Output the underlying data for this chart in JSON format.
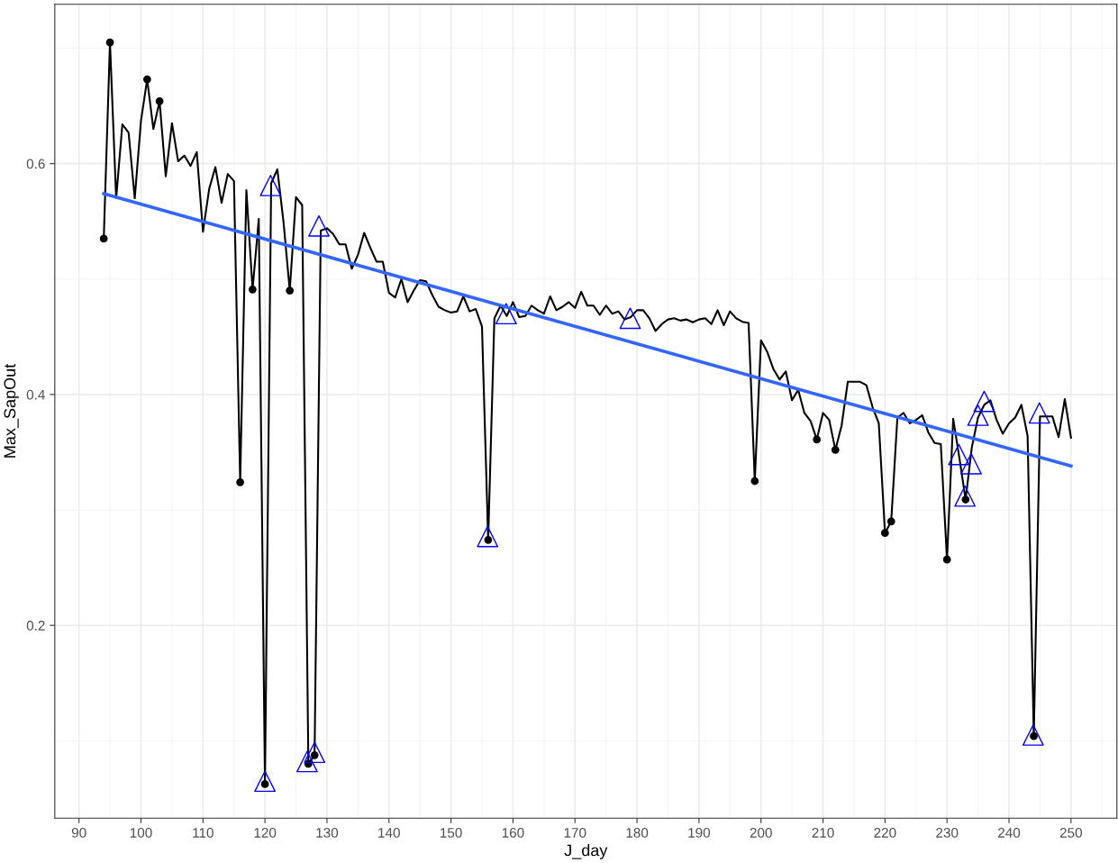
{
  "chart_data": {
    "type": "line",
    "xlabel": "J_day",
    "ylabel": "Max_SapOut",
    "xlim": [
      86.1,
      257.4
    ],
    "ylim": [
      0.033,
      0.738
    ],
    "xticks": [
      90,
      100,
      110,
      120,
      130,
      140,
      150,
      160,
      170,
      180,
      190,
      200,
      210,
      220,
      230,
      240,
      250
    ],
    "yticks": [
      0.2,
      0.4,
      0.6
    ],
    "grid": true,
    "series": [
      {
        "color": "#000000",
        "marker": "none",
        "x": [
          94,
          95,
          96,
          97,
          98,
          99,
          100,
          101,
          102,
          103,
          104,
          105,
          106,
          107,
          108,
          109,
          110,
          111,
          112,
          113,
          114,
          115,
          116,
          117,
          118,
          119,
          120,
          121,
          122,
          123,
          124,
          125,
          126,
          127,
          128,
          129,
          130,
          131,
          132,
          133,
          134,
          135,
          136,
          137,
          138,
          139,
          140,
          141,
          142,
          143,
          144,
          145,
          146,
          147,
          148,
          149,
          150,
          151,
          152,
          153,
          154,
          155,
          156,
          157,
          158,
          159,
          160,
          161,
          162,
          163,
          164,
          165,
          166,
          167,
          168,
          169,
          170,
          171,
          172,
          173,
          174,
          175,
          176,
          177,
          178,
          179,
          180,
          181,
          182,
          183,
          184,
          185,
          186,
          187,
          188,
          189,
          190,
          191,
          192,
          193,
          194,
          195,
          196,
          197,
          198,
          199,
          200,
          201,
          202,
          203,
          204,
          205,
          206,
          207,
          208,
          209,
          210,
          211,
          212,
          213,
          214,
          215,
          216,
          217,
          218,
          219,
          220,
          221,
          222,
          223,
          224,
          225,
          226,
          227,
          228,
          229,
          230,
          231,
          232,
          233,
          234,
          235,
          236,
          237,
          238,
          239,
          240,
          241,
          242,
          243,
          244,
          245,
          246,
          247,
          248,
          249,
          250
        ],
        "values": [
          0.535,
          0.705,
          0.57,
          0.634,
          0.627,
          0.57,
          0.637,
          0.673,
          0.63,
          0.654,
          0.589,
          0.635,
          0.602,
          0.607,
          0.598,
          0.61,
          0.541,
          0.578,
          0.597,
          0.566,
          0.591,
          0.585,
          0.324,
          0.577,
          0.491,
          0.552,
          0.0625,
          0.583,
          0.595,
          0.549,
          0.49,
          0.571,
          0.564,
          0.08,
          0.0875,
          0.542,
          0.544,
          0.539,
          0.53,
          0.53,
          0.509,
          0.521,
          0.54,
          0.527,
          0.515,
          0.515,
          0.488,
          0.484,
          0.5,
          0.48,
          0.49,
          0.499,
          0.498,
          0.486,
          0.476,
          0.473,
          0.471,
          0.472,
          0.485,
          0.472,
          0.474,
          0.459,
          0.274,
          0.466,
          0.477,
          0.468,
          0.48,
          0.467,
          0.468,
          0.477,
          0.473,
          0.47,
          0.485,
          0.473,
          0.476,
          0.48,
          0.475,
          0.489,
          0.477,
          0.477,
          0.469,
          0.477,
          0.47,
          0.472,
          0.465,
          0.467,
          0.473,
          0.473,
          0.466,
          0.455,
          0.461,
          0.465,
          0.466,
          0.464,
          0.465,
          0.4625,
          0.465,
          0.466,
          0.461,
          0.473,
          0.46,
          0.472,
          0.466,
          0.463,
          0.462,
          0.325,
          0.447,
          0.437,
          0.422,
          0.413,
          0.42,
          0.395,
          0.404,
          0.384,
          0.377,
          0.361,
          0.384,
          0.378,
          0.352,
          0.373,
          0.411,
          0.411,
          0.411,
          0.408,
          0.389,
          0.375,
          0.28,
          0.29,
          0.38,
          0.384,
          0.375,
          0.378,
          0.382,
          0.367,
          0.358,
          0.357,
          0.257,
          0.379,
          0.345,
          0.309,
          0.354,
          0.38,
          0.391,
          0.395,
          0.378,
          0.366,
          0.375,
          0.38,
          0.391,
          0.364,
          0.104,
          0.381,
          0.381,
          0.381,
          0.363,
          0.396,
          0.3625
        ]
      },
      {
        "type": "scatter",
        "color": "#000000",
        "marker": "circle",
        "x": [
          94,
          95,
          101,
          103,
          116,
          118,
          120,
          124,
          127,
          128,
          156,
          199,
          209,
          212,
          220,
          221,
          230,
          233,
          244
        ],
        "values": [
          0.535,
          0.705,
          0.673,
          0.654,
          0.324,
          0.491,
          0.0625,
          0.49,
          0.08,
          0.0875,
          0.274,
          0.325,
          0.361,
          0.352,
          0.28,
          0.29,
          0.257,
          0.309,
          0.104
        ]
      },
      {
        "type": "scatter",
        "color": "#0000ff",
        "marker": "triangle",
        "x": [
          120,
          126.8,
          128,
          120.9,
          128.7,
          155.9,
          158.9,
          178.9,
          231.9,
          232.9,
          233.9,
          235,
          236,
          244.9,
          243.9
        ],
        "values": [
          0.065,
          0.082,
          0.09,
          0.581,
          0.546,
          0.277,
          0.47,
          0.466,
          0.348,
          0.312,
          0.34,
          0.382,
          0.394,
          0.384,
          0.105
        ]
      },
      {
        "color": "#3366ff",
        "marker": "none",
        "x": [
          94,
          250
        ],
        "values": [
          0.574,
          0.338
        ]
      }
    ]
  }
}
